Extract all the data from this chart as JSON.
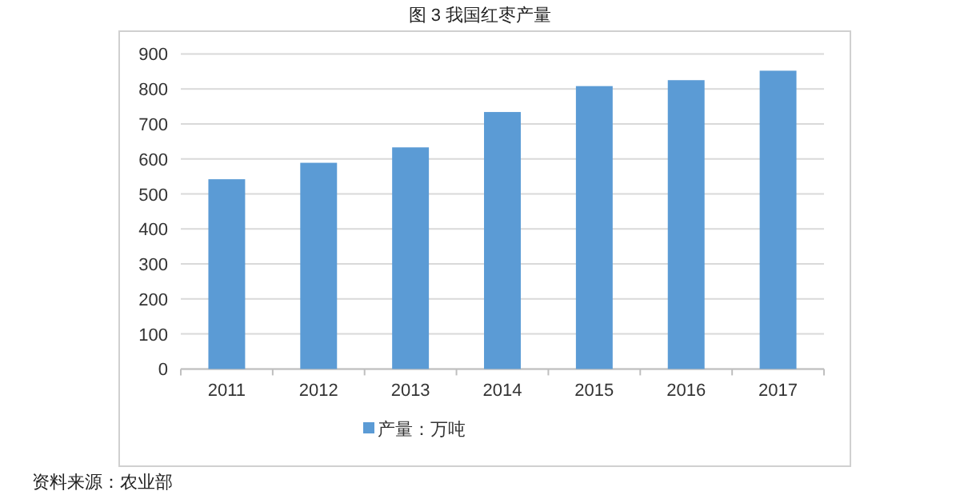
{
  "chart_data": {
    "type": "bar",
    "title": "图 3 我国红枣产量",
    "categories": [
      "2011",
      "2012",
      "2013",
      "2014",
      "2015",
      "2016",
      "2017"
    ],
    "series": [
      {
        "name": "产量：万吨",
        "color": "#5b9bd5",
        "values": [
          542,
          589,
          633,
          734,
          808,
          825,
          852
        ]
      }
    ],
    "ylim": [
      0,
      900
    ],
    "yticks": [
      0,
      100,
      200,
      300,
      400,
      500,
      600,
      700,
      800,
      900
    ],
    "grid": "y",
    "legend": "bottom",
    "annotations": [
      "资料来源：农业部"
    ]
  }
}
